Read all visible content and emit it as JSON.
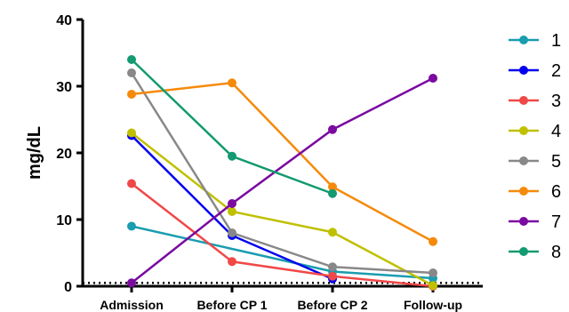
{
  "chart_data": {
    "type": "line",
    "categories": [
      "Admission",
      "Before CP 1",
      "Before CP 2",
      "Follow-up"
    ],
    "ylabel": "mg/dL",
    "xlabel": "",
    "ylim": [
      0,
      40
    ],
    "y_ticks": [
      "0",
      "10",
      "20",
      "30",
      "40"
    ],
    "reference_line": {
      "y": 0.5,
      "style": "dotted"
    },
    "legend_position": "right",
    "series": [
      {
        "name": "1",
        "color": "#1a9db0",
        "values": [
          9.0,
          null,
          2.2,
          1.2
        ]
      },
      {
        "name": "2",
        "color": "#0000ee",
        "values": [
          22.6,
          7.6,
          1.1,
          null
        ]
      },
      {
        "name": "3",
        "color": "#f04848",
        "values": [
          15.4,
          3.7,
          1.5,
          0.0
        ]
      },
      {
        "name": "4",
        "color": "#c0c000",
        "values": [
          23.0,
          11.2,
          8.1,
          0.1
        ]
      },
      {
        "name": "5",
        "color": "#888888",
        "values": [
          32.0,
          8.0,
          2.9,
          2.0
        ]
      },
      {
        "name": "6",
        "color": "#f58a0a",
        "values": [
          28.8,
          30.5,
          14.9,
          6.7
        ]
      },
      {
        "name": "7",
        "color": "#7a0aa0",
        "values": [
          0.5,
          12.4,
          23.5,
          31.2
        ]
      },
      {
        "name": "8",
        "color": "#139a70",
        "values": [
          34.0,
          19.5,
          13.9,
          null
        ]
      }
    ]
  }
}
